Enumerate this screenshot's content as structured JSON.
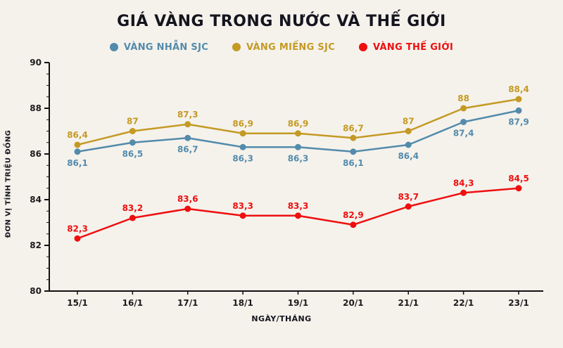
{
  "chart_data": {
    "type": "line",
    "title": "GIÁ VÀNG TRONG NƯỚC VÀ THẾ GIỚI",
    "xlabel": "NGÀY/THÁNG",
    "ylabel": "ĐƠN VỊ TÍNH TRIỆU ĐỒNG",
    "categories": [
      "15/1",
      "16/1",
      "17/1",
      "18/1",
      "19/1",
      "20/1",
      "21/1",
      "22/1",
      "23/1"
    ],
    "ylim": [
      80,
      90
    ],
    "y_major_ticks": [
      80,
      82,
      84,
      86,
      88,
      90
    ],
    "y_minor_step": 0.5,
    "grid": false,
    "legend_position": "top",
    "value_format": "comma-decimal",
    "series": [
      {
        "id": "vang-nhan-sjc",
        "name": "VÀNG NHẪN SJC",
        "color": "#538bab",
        "label_position": "below",
        "values": [
          86.1,
          86.5,
          86.7,
          86.3,
          86.3,
          86.1,
          86.4,
          87.4,
          87.9
        ]
      },
      {
        "id": "vang-mieng-sjc",
        "name": "VÀNG MIẾNG SJC",
        "color": "#c49a24",
        "label_position": "above",
        "values": [
          86.4,
          87,
          87.3,
          86.9,
          86.9,
          86.7,
          87,
          88,
          88.4
        ]
      },
      {
        "id": "vang-the-gioi",
        "name": "VÀNG THẾ GIỚI",
        "color": "#ee0f0f",
        "label_position": "above",
        "values": [
          82.3,
          83.2,
          83.6,
          83.3,
          83.3,
          82.9,
          83.7,
          84.3,
          84.5
        ]
      }
    ]
  },
  "colors": {
    "background": "#f5f2ec",
    "axis": "#111111",
    "title": "#15151f"
  }
}
